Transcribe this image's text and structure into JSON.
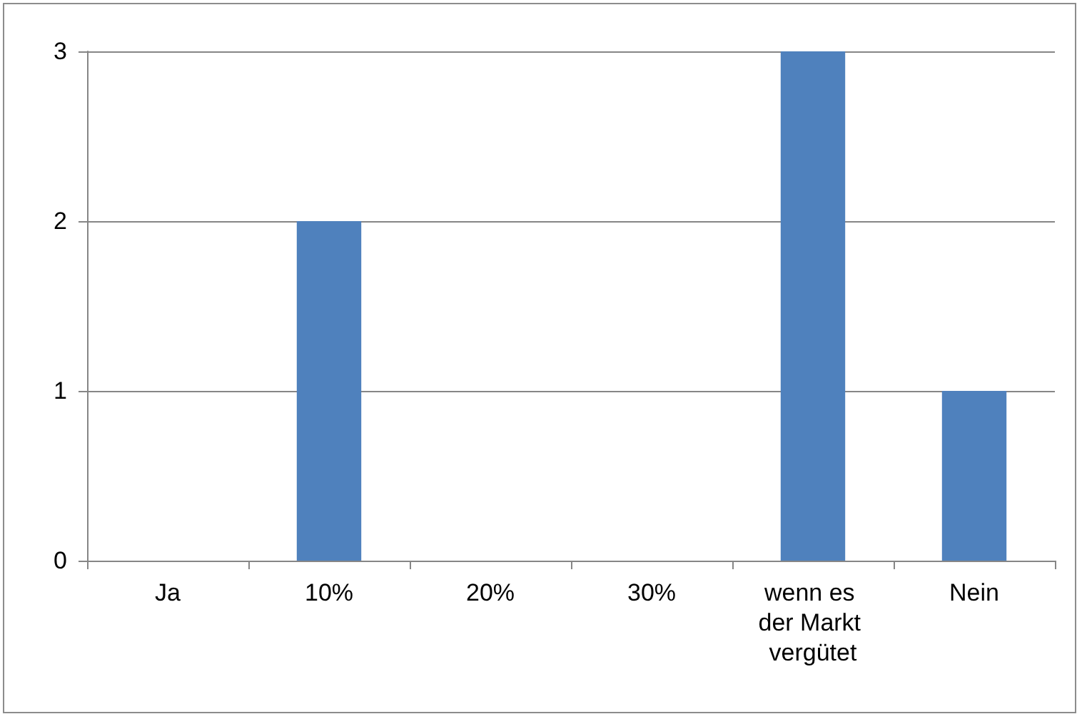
{
  "chart_data": {
    "type": "bar",
    "categories": [
      "Ja",
      "10%",
      "20%",
      "30%",
      "wenn es der Markt vergütet",
      "Nein"
    ],
    "values": [
      0,
      2,
      0,
      0,
      3,
      1
    ],
    "color": "#4f81bd",
    "ylim": [
      0,
      3
    ],
    "yticks": [
      0,
      1,
      2,
      3
    ],
    "grid": "y"
  }
}
